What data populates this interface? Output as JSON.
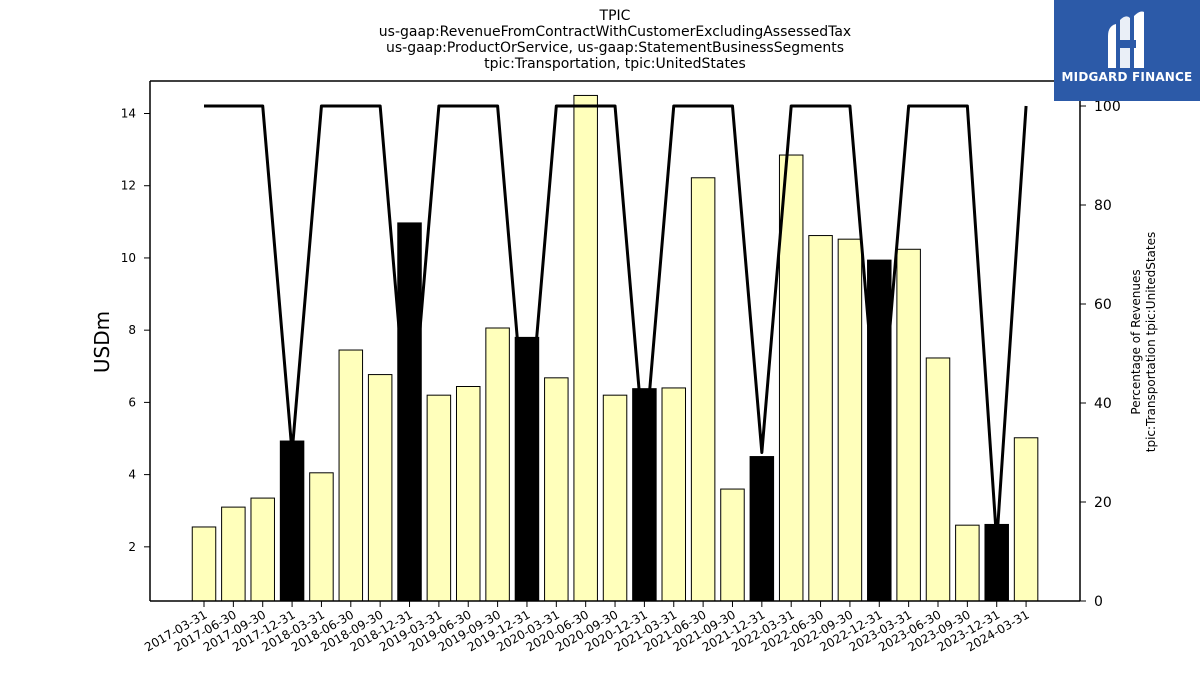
{
  "brand": {
    "name": "MIDGARD FINANCE",
    "color": "#2c5aa8"
  },
  "chart_data": {
    "type": "bar",
    "title": [
      "TPIC",
      "us-gaap:RevenueFromContractWithCustomerExcludingAssessedTax",
      "us-gaap:ProductOrService, us-gaap:StatementBusinessSegments",
      "tpic:Transportation, tpic:UnitedStates"
    ],
    "ylabel": "USDm",
    "y2label": [
      "Percentage of Revenues",
      "tpic:Transportation tpic:UnitedStates"
    ],
    "ylim": [
      0.5,
      14.9
    ],
    "y2lim": [
      0,
      100
    ],
    "yticks": [
      2,
      4,
      6,
      8,
      10,
      12,
      14
    ],
    "y2ticks": [
      0,
      20,
      40,
      60,
      80,
      100
    ],
    "categories": [
      "2017-03-31",
      "2017-06-30",
      "2017-09-30",
      "2017-12-31",
      "2018-03-31",
      "2018-06-30",
      "2018-09-30",
      "2018-12-31",
      "2019-03-31",
      "2019-06-30",
      "2019-09-30",
      "2019-12-31",
      "2020-03-31",
      "2020-06-30",
      "2020-09-30",
      "2020-12-31",
      "2021-03-31",
      "2021-06-30",
      "2021-09-30",
      "2021-12-31",
      "2022-03-31",
      "2022-06-30",
      "2022-09-30",
      "2022-12-31",
      "2023-03-31",
      "2023-06-30",
      "2023-09-30",
      "2023-12-31",
      "2024-03-31"
    ],
    "series": [
      {
        "type": "bar",
        "values": [
          2.55,
          3.1,
          3.35,
          4.93,
          4.05,
          7.45,
          6.77,
          10.97,
          6.2,
          6.44,
          8.06,
          7.8,
          6.68,
          14.5,
          6.2,
          6.38,
          6.4,
          12.22,
          3.6,
          4.5,
          12.85,
          10.62,
          10.52,
          9.94,
          10.24,
          7.23,
          2.6,
          2.62,
          5.02
        ],
        "colors": [
          "#ffffbb",
          "#ffffbb",
          "#ffffbb",
          "#000000",
          "#ffffbb",
          "#ffffbb",
          "#ffffbb",
          "#000000",
          "#ffffbb",
          "#ffffbb",
          "#ffffbb",
          "#000000",
          "#ffffbb",
          "#ffffbb",
          "#ffffbb",
          "#000000",
          "#ffffbb",
          "#ffffbb",
          "#ffffbb",
          "#000000",
          "#ffffbb",
          "#ffffbb",
          "#ffffbb",
          "#000000",
          "#ffffbb",
          "#ffffbb",
          "#ffffbb",
          "#000000",
          "#ffffbb"
        ]
      },
      {
        "type": "line",
        "axis": "right",
        "color": "#000000",
        "values": [
          100,
          100,
          100,
          30,
          100,
          100,
          100,
          30,
          100,
          100,
          100,
          30,
          100,
          100,
          100,
          30,
          100,
          100,
          100,
          30,
          100,
          100,
          100,
          30,
          100,
          100,
          100,
          12,
          100
        ]
      }
    ],
    "grid": false
  }
}
